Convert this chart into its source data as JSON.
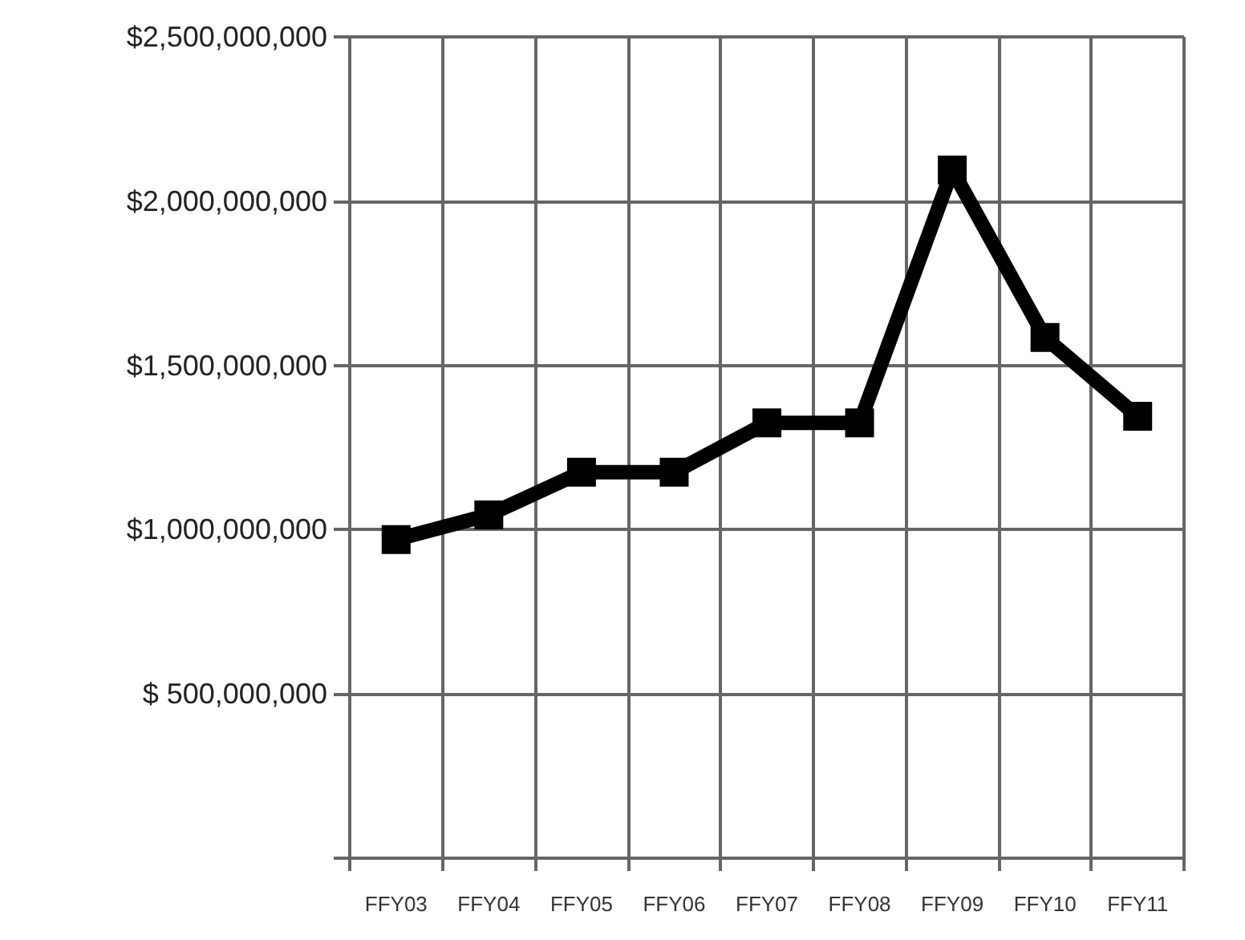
{
  "chart_data": {
    "type": "line",
    "categories": [
      "FFY03",
      "FFY04",
      "FFY05",
      "FFY06",
      "FFY07",
      "FFY08",
      "FFY09",
      "FFY10",
      "FFY11"
    ],
    "series": [
      {
        "color": "#000000",
        "values": [
          970000000,
          1045000000,
          1175000000,
          1175000000,
          1325000000,
          1325000000,
          2095000000,
          1585000000,
          1345000000
        ]
      }
    ],
    "ylim": [
      0,
      2500000000
    ],
    "yticks": [
      {
        "value": 0,
        "label": null
      },
      {
        "value": 500000000,
        "label": "$ 500,000,000"
      },
      {
        "value": 1000000000,
        "label": "$1,000,000,000"
      },
      {
        "value": 1500000000,
        "label": "$1,500,000,000"
      },
      {
        "value": 2000000000,
        "label": "$2,000,000,000"
      },
      {
        "value": 2500000000,
        "label": "$2,500,000,000"
      }
    ],
    "grid": true,
    "marker": "square",
    "line_style": "solid"
  }
}
